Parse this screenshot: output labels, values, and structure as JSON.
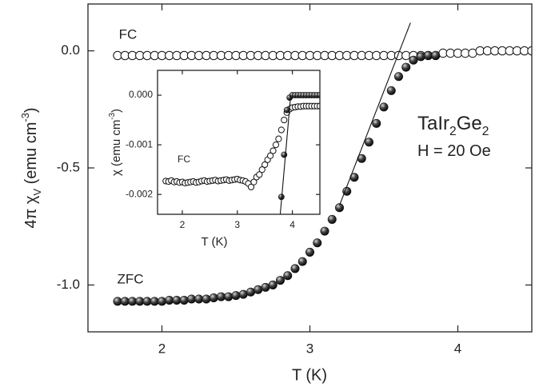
{
  "chart_data": [
    {
      "type": "scatter",
      "xlabel": "T (K)",
      "ylabel": [
        "4π χ",
        "V",
        " (emu cm",
        "-3",
        ")"
      ],
      "annotations": [
        [
          "TaIr",
          "2",
          "Ge",
          "2"
        ],
        [
          "H = 20 Oe"
        ]
      ],
      "xlim": [
        1.5,
        4.5
      ],
      "ylim": [
        -1.2,
        0.2
      ],
      "xticks": [
        2,
        3,
        4
      ],
      "yticks": [
        {
          "value": 0,
          "label": "0.0"
        },
        {
          "value": -0.5,
          "label": "-0.5"
        },
        {
          "value": -1,
          "label": "-1.0"
        }
      ],
      "series": [
        {
          "name": "FC",
          "marker": "open",
          "color": "#111111",
          "x": [
            1.7,
            1.75,
            1.8,
            1.85,
            1.9,
            1.95,
            2.0,
            2.05,
            2.1,
            2.15,
            2.2,
            2.25,
            2.3,
            2.35,
            2.4,
            2.45,
            2.5,
            2.55,
            2.6,
            2.65,
            2.7,
            2.75,
            2.8,
            2.85,
            2.9,
            2.95,
            3.0,
            3.05,
            3.1,
            3.15,
            3.2,
            3.25,
            3.3,
            3.35,
            3.4,
            3.45,
            3.5,
            3.55,
            3.6,
            3.65,
            3.7,
            3.75,
            3.8,
            3.85,
            3.9,
            3.95,
            4.0,
            4.05,
            4.1,
            4.15,
            4.2,
            4.25,
            4.3,
            4.35,
            4.4,
            4.45,
            4.5
          ],
          "values": [
            -0.02,
            -0.02,
            -0.02,
            -0.02,
            -0.02,
            -0.02,
            -0.02,
            -0.02,
            -0.02,
            -0.02,
            -0.02,
            -0.02,
            -0.02,
            -0.02,
            -0.02,
            -0.02,
            -0.02,
            -0.02,
            -0.02,
            -0.02,
            -0.02,
            -0.02,
            -0.02,
            -0.02,
            -0.02,
            -0.02,
            -0.02,
            -0.02,
            -0.02,
            -0.02,
            -0.02,
            -0.02,
            -0.02,
            -0.02,
            -0.02,
            -0.02,
            -0.02,
            -0.02,
            -0.02,
            -0.02,
            -0.02,
            -0.02,
            -0.02,
            -0.02,
            -0.01,
            -0.01,
            -0.01,
            -0.01,
            -0.01,
            0,
            0,
            0,
            0,
            0,
            0,
            0,
            0
          ]
        },
        {
          "name": "ZFC",
          "marker": "filled",
          "color": "#111111",
          "x": [
            1.7,
            1.75,
            1.8,
            1.85,
            1.9,
            1.95,
            2.0,
            2.05,
            2.1,
            2.15,
            2.2,
            2.25,
            2.3,
            2.35,
            2.4,
            2.45,
            2.5,
            2.55,
            2.6,
            2.65,
            2.7,
            2.75,
            2.8,
            2.85,
            2.9,
            2.95,
            3.0,
            3.05,
            3.1,
            3.15,
            3.2,
            3.25,
            3.3,
            3.35,
            3.4,
            3.45,
            3.5,
            3.55,
            3.6,
            3.65,
            3.7,
            3.75,
            3.8,
            3.85
          ],
          "values": [
            -1.07,
            -1.07,
            -1.07,
            -1.07,
            -1.07,
            -1.07,
            -1.07,
            -1.065,
            -1.065,
            -1.065,
            -1.06,
            -1.06,
            -1.06,
            -1.055,
            -1.05,
            -1.05,
            -1.045,
            -1.04,
            -1.03,
            -1.02,
            -1.01,
            -1.0,
            -0.98,
            -0.96,
            -0.93,
            -0.9,
            -0.86,
            -0.82,
            -0.77,
            -0.72,
            -0.67,
            -0.6,
            -0.54,
            -0.46,
            -0.39,
            -0.31,
            -0.24,
            -0.17,
            -0.11,
            -0.07,
            -0.04,
            -0.025,
            -0.02,
            -0.02
          ]
        }
      ],
      "fit": {
        "x": [
          3.2,
          3.68
        ],
        "values": [
          -0.66,
          0.12
        ]
      }
    },
    {
      "type": "scatter",
      "xlabel": "T (K)",
      "ylabel": [
        "χ (emu cm",
        "-3",
        ")"
      ],
      "xlim": [
        1.55,
        4.5
      ],
      "ylim": [
        -0.0024,
        0.0005
      ],
      "xticks": [
        2,
        3,
        4
      ],
      "yticks": [
        {
          "value": 0,
          "label": "0.000"
        },
        {
          "value": -0.001,
          "label": "-0.001"
        },
        {
          "value": -0.002,
          "label": "-0.002"
        }
      ],
      "series": [
        {
          "name": "FC",
          "marker": "open",
          "color": "#111111",
          "x": [
            1.7,
            1.75,
            1.8,
            1.85,
            1.9,
            1.95,
            2.0,
            2.05,
            2.1,
            2.15,
            2.2,
            2.25,
            2.3,
            2.35,
            2.4,
            2.45,
            2.5,
            2.55,
            2.6,
            2.65,
            2.7,
            2.75,
            2.8,
            2.85,
            2.9,
            2.95,
            3.0,
            3.05,
            3.1,
            3.15,
            3.2,
            3.25,
            3.3,
            3.35,
            3.4,
            3.45,
            3.5,
            3.55,
            3.6,
            3.65,
            3.7,
            3.75,
            3.8,
            3.85,
            3.9,
            3.95,
            4.0,
            4.05,
            4.1,
            4.15,
            4.2,
            4.25,
            4.3,
            4.35,
            4.4,
            4.45,
            4.5
          ],
          "values": [
            -0.00173,
            -0.00174,
            -0.00172,
            -0.00175,
            -0.00174,
            -0.00176,
            -0.00175,
            -0.00177,
            -0.00176,
            -0.00175,
            -0.00174,
            -0.00176,
            -0.00175,
            -0.00173,
            -0.00172,
            -0.00174,
            -0.00173,
            -0.00172,
            -0.00171,
            -0.00173,
            -0.00172,
            -0.00171,
            -0.0017,
            -0.00172,
            -0.00171,
            -0.0017,
            -0.00169,
            -0.00171,
            -0.00172,
            -0.00174,
            -0.00178,
            -0.00185,
            -0.00175,
            -0.00165,
            -0.0016,
            -0.0015,
            -0.0014,
            -0.0013,
            -0.00122,
            -0.00112,
            -0.001,
            -0.00088,
            -0.0007,
            -0.0005,
            -0.00035,
            -0.00028,
            -0.00025,
            -0.00024,
            -0.00023,
            -0.00023,
            -0.00022,
            -0.00022,
            -0.00022,
            -0.00022,
            -0.00022,
            -0.00022,
            -0.00022
          ]
        },
        {
          "marker": "filled",
          "color": "#111111",
          "x": [
            3.8,
            3.85,
            3.9,
            3.95,
            4.0,
            4.05,
            4.1,
            4.15,
            4.2,
            4.25,
            4.3,
            4.35,
            4.4,
            4.45,
            4.5
          ],
          "values": [
            -0.00205,
            -0.0012,
            -0.0003,
            -5e-05,
            0,
            0,
            0,
            0,
            0,
            0,
            0,
            0,
            0,
            0,
            0
          ]
        }
      ],
      "fit": {
        "x": [
          3.78,
          3.97
        ],
        "values": [
          -0.0024,
          0
        ]
      }
    }
  ]
}
